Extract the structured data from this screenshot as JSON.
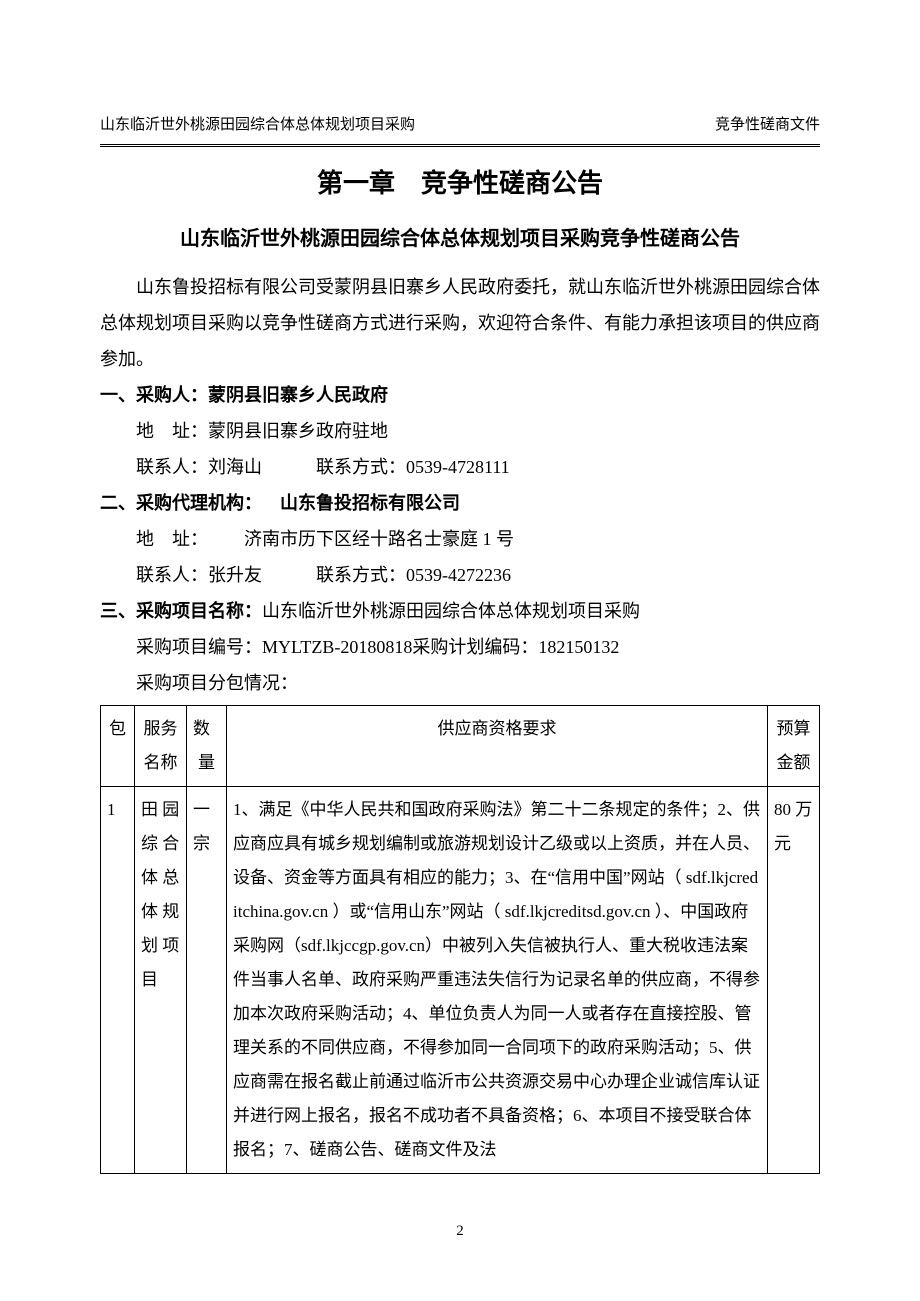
{
  "header": {
    "left": "山东临沂世外桃源田园综合体总体规划项目采购",
    "right": "竞争性磋商文件"
  },
  "chapter_title": "第一章 竞争性磋商公告",
  "sub_title": "山东临沂世外桃源田园综合体总体规划项目采购竞争性磋商公告",
  "intro": "山东鲁投招标有限公司受蒙阴县旧寨乡人民政府委托，就山东临沂世外桃源田园综合体总体规划项目采购以竞争性磋商方式进行采购，欢迎符合条件、有能力承担该项目的供应商参加。",
  "section1": {
    "heading": "一、采购人：蒙阴县旧寨乡人民政府",
    "address_label": "地 址：",
    "address": "蒙阴县旧寨乡政府驻地",
    "contact_label": "联系人：",
    "contact_name": "刘海山",
    "phone_label": "联系方式：",
    "phone": "0539-4728111"
  },
  "section2": {
    "heading": "二、采购代理机构： 山东鲁投招标有限公司",
    "address_label": "地 址：",
    "address": "  济南市历下区经十路名士豪庭 1 号",
    "contact_label": "联系人：",
    "contact_name": "张升友",
    "phone_label": "联系方式：",
    "phone": "0539-4272236"
  },
  "section3": {
    "heading_label": "三、采购项目名称：",
    "heading_value": "山东临沂世外桃源田园综合体总体规划项目采购",
    "proj_no_label": "采购项目编号：",
    "proj_no": "MYLTZB-20180818",
    "plan_no_label": "采购计划编码：",
    "plan_no": "182150132",
    "subpkg_label": "采购项目分包情况："
  },
  "table": {
    "headers": {
      "pkg": "包",
      "name": "服务名称",
      "qty": "数 量",
      "req": "供应商资格要求",
      "budget": "预算金额"
    },
    "row": {
      "pkg": "1",
      "name": "田 园 综 合 体 总 体 规 划 项 目",
      "qty": "一宗",
      "req": "1、满足《中华人民共和国政府采购法》第二十二条规定的条件；2、供应商应具有城乡规划编制或旅游规划设计乙级或以上资质，并在人员、设备、资金等方面具有相应的能力；3、在“信用中国”网站（ sdf.lkjcreditchina.gov.cn ）或“信用山东”网站（ sdf.lkjcreditsd.gov.cn ）、中国政府采购网（sdf.lkjccgp.gov.cn）中被列入失信被执行人、重大税收违法案件当事人名单、政府采购严重违法失信行为记录名单的供应商，不得参加本次政府采购活动；4、单位负责人为同一人或者存在直接控股、管理关系的不同供应商，不得参加同一合同项下的政府采购活动；5、供应商需在报名截止前通过临沂市公共资源交易中心办理企业诚信库认证并进行网上报名，报名不成功者不具备资格；6、本项目不接受联合体报名；7、磋商公告、磋商文件及法",
      "budget": "80 万元"
    }
  },
  "page_number": "2"
}
